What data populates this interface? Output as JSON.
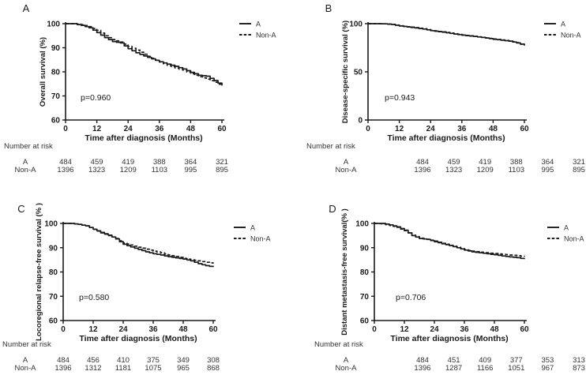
{
  "figure": {
    "background": "#ffffff",
    "ink": "#1a1a1a",
    "table_ink": "#333333"
  },
  "shared": {
    "x_axis_label": "Time after diagnosis (Months)",
    "x_ticks": [
      0,
      12,
      24,
      36,
      48,
      60
    ],
    "legend": [
      {
        "label": "A",
        "style": "solid"
      },
      {
        "label": "Non-A",
        "style": "dashed"
      }
    ],
    "number_at_risk_title": "Number at risk",
    "risk_row_labels": [
      "A",
      "Non-A"
    ]
  },
  "chart_data": [
    {
      "panel": "A",
      "type": "line",
      "y_axis_label": "Overall survival (%)",
      "p_value": "p=0.960",
      "ylim": [
        60,
        100
      ],
      "y_ticks": [
        60,
        70,
        80,
        90,
        100
      ],
      "x_months": [
        0,
        3,
        6,
        9,
        12,
        15,
        18,
        21,
        24,
        27,
        30,
        33,
        36,
        39,
        42,
        45,
        48,
        51,
        54,
        57,
        60
      ],
      "series": [
        {
          "name": "A",
          "line": "solid",
          "values": [
            100,
            100,
            99.3,
            98.3,
            96.3,
            94.2,
            92.6,
            92.0,
            89.6,
            87.9,
            86.6,
            85.4,
            84.2,
            83.2,
            82.3,
            81.2,
            79.8,
            78.6,
            78.2,
            76.4,
            74.3
          ]
        },
        {
          "name": "Non-A",
          "line": "dashed",
          "values": [
            100,
            100,
            99.6,
            98.8,
            97.2,
            95.0,
            93.4,
            92.4,
            90.6,
            89.0,
            87.3,
            85.6,
            84.1,
            82.7,
            81.6,
            80.7,
            79.2,
            78.0,
            77.0,
            75.7,
            74.0
          ]
        }
      ],
      "number_at_risk": {
        "A": [
          484,
          459,
          419,
          388,
          364,
          321
        ],
        "Non-A": [
          1396,
          1323,
          1209,
          1103,
          995,
          895
        ]
      }
    },
    {
      "panel": "B",
      "type": "line",
      "y_axis_label": "Disease-specific survival (%)",
      "p_value": "p=0.943",
      "ylim": [
        0,
        100
      ],
      "y_ticks": [
        0,
        50,
        100
      ],
      "x_months": [
        0,
        3,
        6,
        9,
        12,
        15,
        18,
        21,
        24,
        27,
        30,
        33,
        36,
        39,
        42,
        45,
        48,
        51,
        54,
        57,
        60
      ],
      "series": [
        {
          "name": "A",
          "line": "solid",
          "values": [
            100,
            100,
            99.8,
            99.2,
            97.6,
            96.6,
            95.6,
            94.4,
            92.8,
            91.7,
            90.6,
            89.3,
            88.1,
            87.2,
            86.2,
            85.2,
            83.8,
            82.9,
            81.9,
            80.0,
            77.6
          ]
        },
        {
          "name": "Non-A",
          "line": "dashed",
          "values": [
            100,
            100,
            99.8,
            99.3,
            97.9,
            96.9,
            95.9,
            94.8,
            93.2,
            92.0,
            90.9,
            89.6,
            88.4,
            87.4,
            86.4,
            85.4,
            84.1,
            83.1,
            82.1,
            80.3,
            77.3
          ]
        }
      ],
      "number_at_risk": {
        "A": [
          484,
          459,
          419,
          388,
          364,
          321
        ],
        "Non-A": [
          1396,
          1323,
          1209,
          1103,
          995,
          895
        ]
      }
    },
    {
      "panel": "C",
      "type": "line",
      "y_axis_label": "Locoregional relapse-free survival (% )",
      "p_value": "p=0.580",
      "ylim": [
        60,
        100
      ],
      "y_ticks": [
        60,
        70,
        80,
        90,
        100
      ],
      "x_months": [
        0,
        3,
        6,
        9,
        12,
        15,
        18,
        21,
        24,
        27,
        30,
        33,
        36,
        39,
        42,
        45,
        48,
        51,
        54,
        57,
        60
      ],
      "series": [
        {
          "name": "A",
          "line": "solid",
          "values": [
            100,
            100,
            99.6,
            99.0,
            97.6,
            96.3,
            95.2,
            93.6,
            91.4,
            90.3,
            89.3,
            88.3,
            87.5,
            87.0,
            86.3,
            85.8,
            85.3,
            84.6,
            83.4,
            82.6,
            82.0
          ]
        },
        {
          "name": "Non-A",
          "line": "dashed",
          "values": [
            100,
            100,
            99.6,
            99.0,
            97.6,
            96.1,
            95.0,
            93.8,
            91.9,
            91.1,
            90.2,
            89.4,
            88.6,
            87.9,
            87.0,
            86.4,
            85.6,
            85.0,
            84.6,
            84.0,
            83.5
          ]
        }
      ],
      "number_at_risk": {
        "A": [
          484,
          456,
          410,
          375,
          349,
          308
        ],
        "Non-A": [
          1396,
          1312,
          1181,
          1075,
          965,
          868
        ]
      }
    },
    {
      "panel": "D",
      "type": "line",
      "y_axis_label": "Distant metastasis-free survival(% )",
      "p_value": "p=0.706",
      "ylim": [
        60,
        100
      ],
      "y_ticks": [
        60,
        70,
        80,
        90,
        100
      ],
      "x_months": [
        0,
        3,
        6,
        9,
        12,
        15,
        18,
        21,
        24,
        27,
        30,
        33,
        36,
        39,
        42,
        45,
        48,
        51,
        54,
        57,
        60
      ],
      "series": [
        {
          "name": "A",
          "line": "solid",
          "values": [
            100,
            100,
            99.4,
            98.6,
            97.2,
            95.0,
            93.8,
            93.4,
            92.5,
            91.6,
            90.9,
            90.0,
            89.0,
            88.3,
            87.9,
            87.5,
            87.1,
            86.6,
            86.2,
            85.9,
            85.3
          ]
        },
        {
          "name": "Non-A",
          "line": "dashed",
          "values": [
            100,
            99.8,
            99.2,
            98.4,
            97.0,
            95.2,
            94.0,
            93.5,
            92.7,
            91.8,
            91.0,
            90.2,
            89.2,
            88.6,
            88.2,
            87.9,
            87.6,
            87.3,
            87.0,
            86.7,
            86.3
          ]
        }
      ],
      "number_at_risk": {
        "A": [
          484,
          451,
          409,
          377,
          353,
          313
        ],
        "Non-A": [
          1396,
          1287,
          1166,
          1051,
          967,
          873
        ]
      }
    }
  ]
}
